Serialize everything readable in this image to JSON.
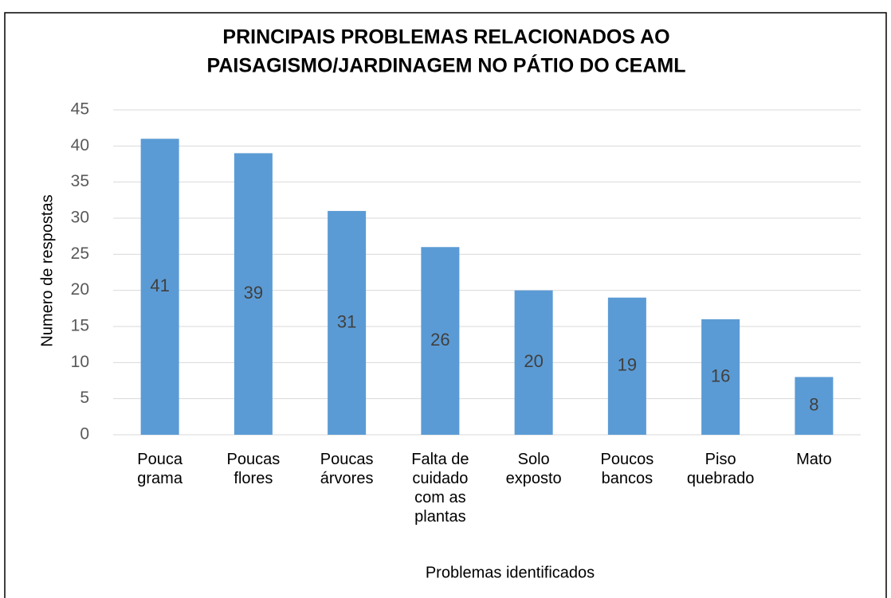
{
  "chart_data": {
    "type": "bar",
    "title": [
      "PRINCIPAIS PROBLEMAS RELACIONADOS AO",
      "PAISAGISMO/JARDINAGEM NO PÁTIO DO CEAML"
    ],
    "x_label": "Problemas identificados",
    "y_label": "Numero de respostas",
    "categories": [
      "Pouca grama",
      "Poucas flores",
      "Poucas árvores",
      "Falta de cuidado com as plantas",
      "Solo exposto",
      "Poucos bancos",
      "Piso quebrado",
      "Mato"
    ],
    "values": [
      41,
      39,
      31,
      26,
      20,
      19,
      16,
      8
    ],
    "color": "#5b9bd5",
    "ylim": [
      0,
      45
    ],
    "yticks": [
      0,
      5,
      10,
      15,
      20,
      25,
      30,
      35,
      40,
      45
    ],
    "grid": true
  }
}
